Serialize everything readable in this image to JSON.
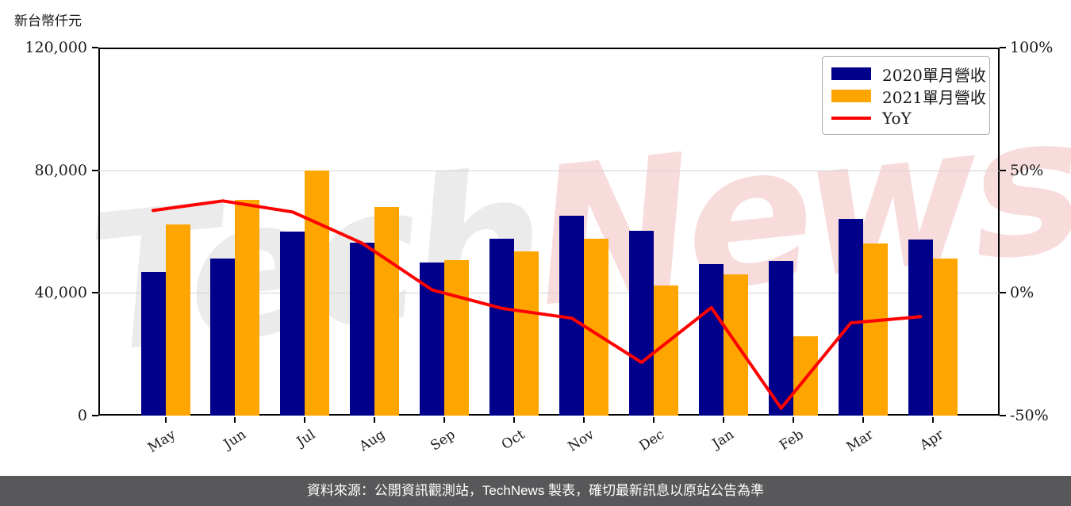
{
  "chart_data": {
    "type": "bar+line",
    "title": "",
    "unit_label": "新台幣仟元",
    "categories": [
      "May",
      "Jun",
      "Jul",
      "Aug",
      "Sep",
      "Oct",
      "Nov",
      "Dec",
      "Jan",
      "Feb",
      "Mar",
      "Apr"
    ],
    "series": [
      {
        "name": "2020單月營收",
        "type": "bar",
        "axis": "left",
        "color": "#00008B",
        "values": [
          46700,
          51300,
          60100,
          56400,
          50000,
          57700,
          65200,
          60300,
          49500,
          50400,
          64100,
          57300
        ]
      },
      {
        "name": "2021單月營收",
        "type": "bar",
        "axis": "left",
        "color": "#FFA500",
        "values": [
          62400,
          70400,
          79900,
          68100,
          50600,
          53600,
          57700,
          42400,
          46100,
          25800,
          56000,
          51200
        ]
      },
      {
        "name": "YoY",
        "type": "line",
        "axis": "right",
        "color": "#FF0000",
        "values": [
          33.6,
          37.5,
          33.0,
          20.2,
          1.2,
          -6.3,
          -10.3,
          -28.3,
          -6.0,
          -47.0,
          -12.2,
          -9.7
        ]
      }
    ],
    "left_axis": {
      "unit": "新台幣仟元",
      "min": 0,
      "max": 120000,
      "tick_values": [
        120000,
        80000,
        40000,
        0
      ],
      "tick_labels": [
        "120,000",
        "80,000",
        "40,000",
        "0"
      ]
    },
    "right_axis": {
      "unit": "%",
      "min": -50,
      "max": 100,
      "tick_values": [
        100,
        50,
        0,
        -50
      ],
      "tick_labels": [
        "100%",
        "50%",
        "0%",
        "-50%"
      ]
    },
    "grid": "horizontal",
    "grid_color": "#d3d3d3",
    "legend_position": "top-right"
  },
  "watermark": {
    "part1": "Tech",
    "part2": "News",
    "color1": "#ebebeb",
    "color2": "#f8dcdc"
  },
  "footer": {
    "text": "資料來源：公開資訊觀測站，TechNews 製表，確切最新訊息以原站公告為準",
    "bg": "#58585A",
    "color": "#ffffff"
  }
}
